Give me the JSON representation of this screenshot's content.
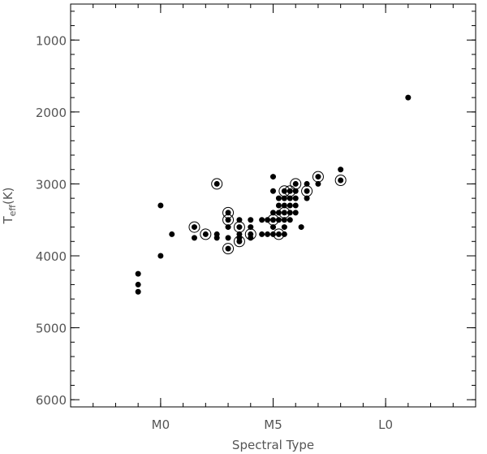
{
  "chart_data": {
    "type": "scatter",
    "xlabel": "Spectral Type",
    "ylabel": {
      "main": "T",
      "sub": "eff",
      "unit": "(K)"
    },
    "xlim": [
      -4,
      14
    ],
    "ylim": [
      6100,
      500
    ],
    "y_inverted": true,
    "x_ticks": [
      {
        "value": 0,
        "label": "M0"
      },
      {
        "value": 5,
        "label": "M5"
      },
      {
        "value": 10,
        "label": "L0"
      }
    ],
    "x_minor_step": 1,
    "y_ticks": [
      {
        "value": 1000,
        "label": "1000"
      },
      {
        "value": 2000,
        "label": "2000"
      },
      {
        "value": 3000,
        "label": "3000"
      },
      {
        "value": 4000,
        "label": "4000"
      },
      {
        "value": 5000,
        "label": "5000"
      },
      {
        "value": 6000,
        "label": "6000"
      }
    ],
    "y_minor_step": 200,
    "grid": false,
    "series": [
      {
        "marker": "filled-dot",
        "points": [
          [
            -1,
            4250
          ],
          [
            -1,
            4400
          ],
          [
            -1,
            4500
          ],
          [
            0,
            3300
          ],
          [
            0,
            4000
          ],
          [
            0.5,
            3700
          ],
          [
            1.5,
            3600
          ],
          [
            1.5,
            3750
          ],
          [
            2,
            3700
          ],
          [
            2.5,
            3000
          ],
          [
            2.5,
            3700
          ],
          [
            2.5,
            3750
          ],
          [
            3,
            3400
          ],
          [
            3,
            3500
          ],
          [
            3,
            3600
          ],
          [
            3,
            3750
          ],
          [
            3,
            3900
          ],
          [
            3.5,
            3500
          ],
          [
            3.5,
            3600
          ],
          [
            3.5,
            3700
          ],
          [
            3.5,
            3750
          ],
          [
            3.5,
            3800
          ],
          [
            4,
            3500
          ],
          [
            4,
            3600
          ],
          [
            4,
            3700
          ],
          [
            4,
            3750
          ],
          [
            4.5,
            3500
          ],
          [
            4.5,
            3700
          ],
          [
            4.75,
            3500
          ],
          [
            4.75,
            3700
          ],
          [
            5,
            2900
          ],
          [
            5,
            3100
          ],
          [
            5,
            3400
          ],
          [
            5,
            3500
          ],
          [
            5,
            3600
          ],
          [
            5,
            3700
          ],
          [
            5.25,
            3200
          ],
          [
            5.25,
            3300
          ],
          [
            5.25,
            3400
          ],
          [
            5.25,
            3500
          ],
          [
            5.25,
            3700
          ],
          [
            5.5,
            3100
          ],
          [
            5.5,
            3200
          ],
          [
            5.5,
            3300
          ],
          [
            5.5,
            3400
          ],
          [
            5.5,
            3500
          ],
          [
            5.5,
            3600
          ],
          [
            5.5,
            3700
          ],
          [
            5.75,
            3100
          ],
          [
            5.75,
            3200
          ],
          [
            5.75,
            3300
          ],
          [
            5.75,
            3400
          ],
          [
            5.75,
            3500
          ],
          [
            6,
            3000
          ],
          [
            6,
            3100
          ],
          [
            6,
            3200
          ],
          [
            6,
            3300
          ],
          [
            6,
            3400
          ],
          [
            6.25,
            3600
          ],
          [
            6.5,
            3000
          ],
          [
            6.5,
            3100
          ],
          [
            6.5,
            3200
          ],
          [
            7,
            2900
          ],
          [
            7,
            3000
          ],
          [
            8,
            2800
          ],
          [
            8,
            2950
          ],
          [
            11,
            1800
          ]
        ]
      },
      {
        "marker": "open-circle",
        "points": [
          [
            1.5,
            3600
          ],
          [
            2,
            3700
          ],
          [
            2.5,
            3000
          ],
          [
            3,
            3400
          ],
          [
            3,
            3500
          ],
          [
            3,
            3900
          ],
          [
            3.5,
            3600
          ],
          [
            3.5,
            3800
          ],
          [
            4,
            3700
          ],
          [
            5,
            3500
          ],
          [
            5.25,
            3700
          ],
          [
            5.5,
            3100
          ],
          [
            5.5,
            3400
          ],
          [
            5.75,
            3100
          ],
          [
            6,
            3000
          ],
          [
            6.5,
            3100
          ],
          [
            7,
            2900
          ],
          [
            8,
            2950
          ]
        ]
      }
    ]
  }
}
